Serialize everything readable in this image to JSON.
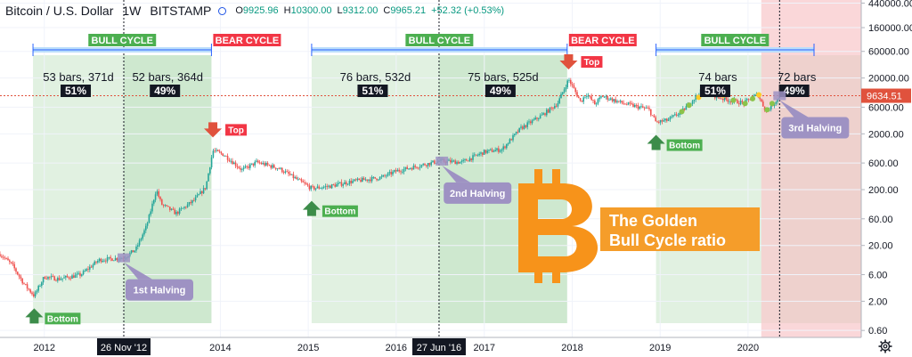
{
  "header": {
    "symbol": "Bitcoin / U.S. Dollar",
    "interval": "1W",
    "exchange": "BITSTAMP",
    "open_label": "O",
    "open": "9925.96",
    "high_label": "H",
    "high": "10300.00",
    "low_label": "L",
    "low": "9312.00",
    "close_label": "C",
    "close": "9965.21",
    "change": "+52.32 (+0.53%)"
  },
  "colors": {
    "bull_zone": "#c8e6c9",
    "bull_zone_dark": "#a5d6a7",
    "bear_zone": "#f8c9cc",
    "bull_label": "#4caf50",
    "bear_label": "#f23645",
    "halving_box": "#9e92c3",
    "arrow_up": "#3c8c4a",
    "arrow_down": "#e0523d",
    "bitcoin_orange": "#f7931a",
    "title_box": "#f59d2a",
    "price_line": "#e0523d",
    "candle_up": "#26a69a",
    "candle_down": "#ef5350"
  },
  "chart_data": {
    "type": "candlestick",
    "title": "",
    "y_scale": "log",
    "ylim": [
      0.45,
      500000
    ],
    "x_range": [
      "2011-07-01",
      "2021-04-15"
    ],
    "x_tick_labels": [
      "2012",
      "2014",
      "2015",
      "2016",
      "2017",
      "2018",
      "2019",
      "2020"
    ],
    "x_tick_dates": [
      "2012-01-01",
      "2014-01-01",
      "2015-01-01",
      "2016-01-01",
      "2017-01-01",
      "2018-01-01",
      "2019-01-01",
      "2020-01-01"
    ],
    "y_tick_labels": [
      "440000.00",
      "160000.00",
      "60000.00",
      "20000.00",
      "6000.00",
      "2000.00",
      "600.00",
      "200.00",
      "60.00",
      "20.00",
      "6.00",
      "2.00",
      "0.60"
    ],
    "y_tick_values": [
      440000,
      160000,
      60000,
      20000,
      6000,
      2000,
      600,
      200,
      60,
      20,
      6,
      2,
      0.6
    ],
    "current_price": 9634.51,
    "current_price_label": "9634.51",
    "date_markers": [
      {
        "date": "2012-11-26",
        "label": "26 Nov '12"
      },
      {
        "date": "2016-06-27",
        "label": "27 Jun '16"
      }
    ],
    "price_path": [
      [
        "2011-07-01",
        14
      ],
      [
        "2011-08-20",
        9
      ],
      [
        "2011-10-10",
        4
      ],
      [
        "2011-11-20",
        2.5
      ],
      [
        "2012-01-01",
        5.5
      ],
      [
        "2012-03-01",
        5
      ],
      [
        "2012-06-01",
        6
      ],
      [
        "2012-08-15",
        11
      ],
      [
        "2012-11-26",
        12
      ],
      [
        "2013-01-15",
        17
      ],
      [
        "2013-03-01",
        45
      ],
      [
        "2013-04-10",
        200
      ],
      [
        "2013-05-01",
        110
      ],
      [
        "2013-07-01",
        75
      ],
      [
        "2013-09-15",
        130
      ],
      [
        "2013-11-01",
        220
      ],
      [
        "2013-12-01",
        1000
      ],
      [
        "2014-01-15",
        850
      ],
      [
        "2014-04-01",
        450
      ],
      [
        "2014-06-01",
        620
      ],
      [
        "2014-09-01",
        480
      ],
      [
        "2015-01-15",
        210
      ],
      [
        "2015-04-01",
        230
      ],
      [
        "2015-07-01",
        280
      ],
      [
        "2015-11-01",
        330
      ],
      [
        "2016-01-01",
        430
      ],
      [
        "2016-06-27",
        650
      ],
      [
        "2016-10-01",
        620
      ],
      [
        "2017-01-01",
        950
      ],
      [
        "2017-03-15",
        1050
      ],
      [
        "2017-06-01",
        2500
      ],
      [
        "2017-09-01",
        4400
      ],
      [
        "2017-11-01",
        7000
      ],
      [
        "2017-12-17",
        19000
      ],
      [
        "2018-02-05",
        7500
      ],
      [
        "2018-03-01",
        10500
      ],
      [
        "2018-04-05",
        6800
      ],
      [
        "2018-05-05",
        9500
      ],
      [
        "2018-08-01",
        7000
      ],
      [
        "2018-11-15",
        5500
      ],
      [
        "2018-12-15",
        3200
      ],
      [
        "2019-02-01",
        3500
      ],
      [
        "2019-04-01",
        5000
      ],
      [
        "2019-06-26",
        12500
      ],
      [
        "2019-08-01",
        10000
      ],
      [
        "2019-10-01",
        8200
      ],
      [
        "2019-12-15",
        7100
      ],
      [
        "2020-02-10",
        10300
      ],
      [
        "2020-03-16",
        5000
      ],
      [
        "2020-05-15",
        9634.51
      ]
    ],
    "zones": [
      {
        "kind": "bull",
        "start": "2011-11-15",
        "end": "2012-11-26"
      },
      {
        "kind": "bull-dark",
        "start": "2012-11-26",
        "end": "2013-11-25"
      },
      {
        "kind": "bull",
        "start": "2015-01-15",
        "end": "2016-06-27"
      },
      {
        "kind": "bull-dark",
        "start": "2016-06-27",
        "end": "2017-12-11"
      },
      {
        "kind": "bull",
        "start": "2018-12-15",
        "end": "2020-05-11"
      },
      {
        "kind": "bull-dark",
        "start": "2020-05-11",
        "end": "2021-10-15"
      },
      {
        "kind": "bear",
        "start": "2020-02-25",
        "end": "2021-04-15"
      }
    ],
    "cycles": [
      {
        "label": "BULL CYCLE",
        "kind": "bull",
        "start": "2011-11-15",
        "end": "2013-11-25"
      },
      {
        "label": "BEAR CYCLE",
        "kind": "bear",
        "start": "2013-11-25",
        "end": "2015-01-15"
      },
      {
        "label": "BULL CYCLE",
        "kind": "bull",
        "start": "2015-01-15",
        "end": "2017-12-11"
      },
      {
        "label": "BEAR CYCLE",
        "kind": "bear",
        "start": "2017-12-11",
        "end": "2018-12-15"
      },
      {
        "label": "BULL CYCLE",
        "kind": "bull",
        "start": "2018-12-15",
        "end": "2021-04-15"
      }
    ],
    "ratio_labels": [
      {
        "text": "53 bars, 371d",
        "pct": "51%",
        "start": "2011-11-15",
        "end": "2012-11-26"
      },
      {
        "text": "52 bars, 364d",
        "pct": "49%",
        "start": "2012-11-26",
        "end": "2013-11-25"
      },
      {
        "text": "76 bars, 532d",
        "pct": "51%",
        "start": "2015-01-15",
        "end": "2016-06-27"
      },
      {
        "text": "75 bars, 525d",
        "pct": "49%",
        "start": "2016-06-27",
        "end": "2017-12-11"
      },
      {
        "text": "74 bars",
        "pct": "51%",
        "start": "2018-12-15",
        "end": "2020-05-11"
      },
      {
        "text": "72 bars",
        "pct": "49%",
        "start": "2020-05-11",
        "end": "2021-10-15"
      }
    ],
    "halvings": [
      {
        "label": "1st Halving",
        "date": "2012-11-26",
        "price": 12
      },
      {
        "label": "2nd Halving",
        "date": "2016-07-09",
        "price": 650
      },
      {
        "label": "3rd Halving",
        "date": "2020-05-11",
        "price": 9634.51
      }
    ],
    "tops": [
      {
        "label": "Top",
        "date": "2013-12-01",
        "price": 1150
      },
      {
        "label": "Top",
        "date": "2017-12-17",
        "price": 19000
      }
    ],
    "bottoms": [
      {
        "label": "Bottom",
        "date": "2011-11-20",
        "price": 2.5
      },
      {
        "label": "Bottom",
        "date": "2015-01-15",
        "price": 210
      },
      {
        "label": "Bottom",
        "date": "2018-12-15",
        "price": 3200
      }
    ],
    "annotation": {
      "line1": "The Golden",
      "line2": "Bull Cycle ratio"
    }
  }
}
